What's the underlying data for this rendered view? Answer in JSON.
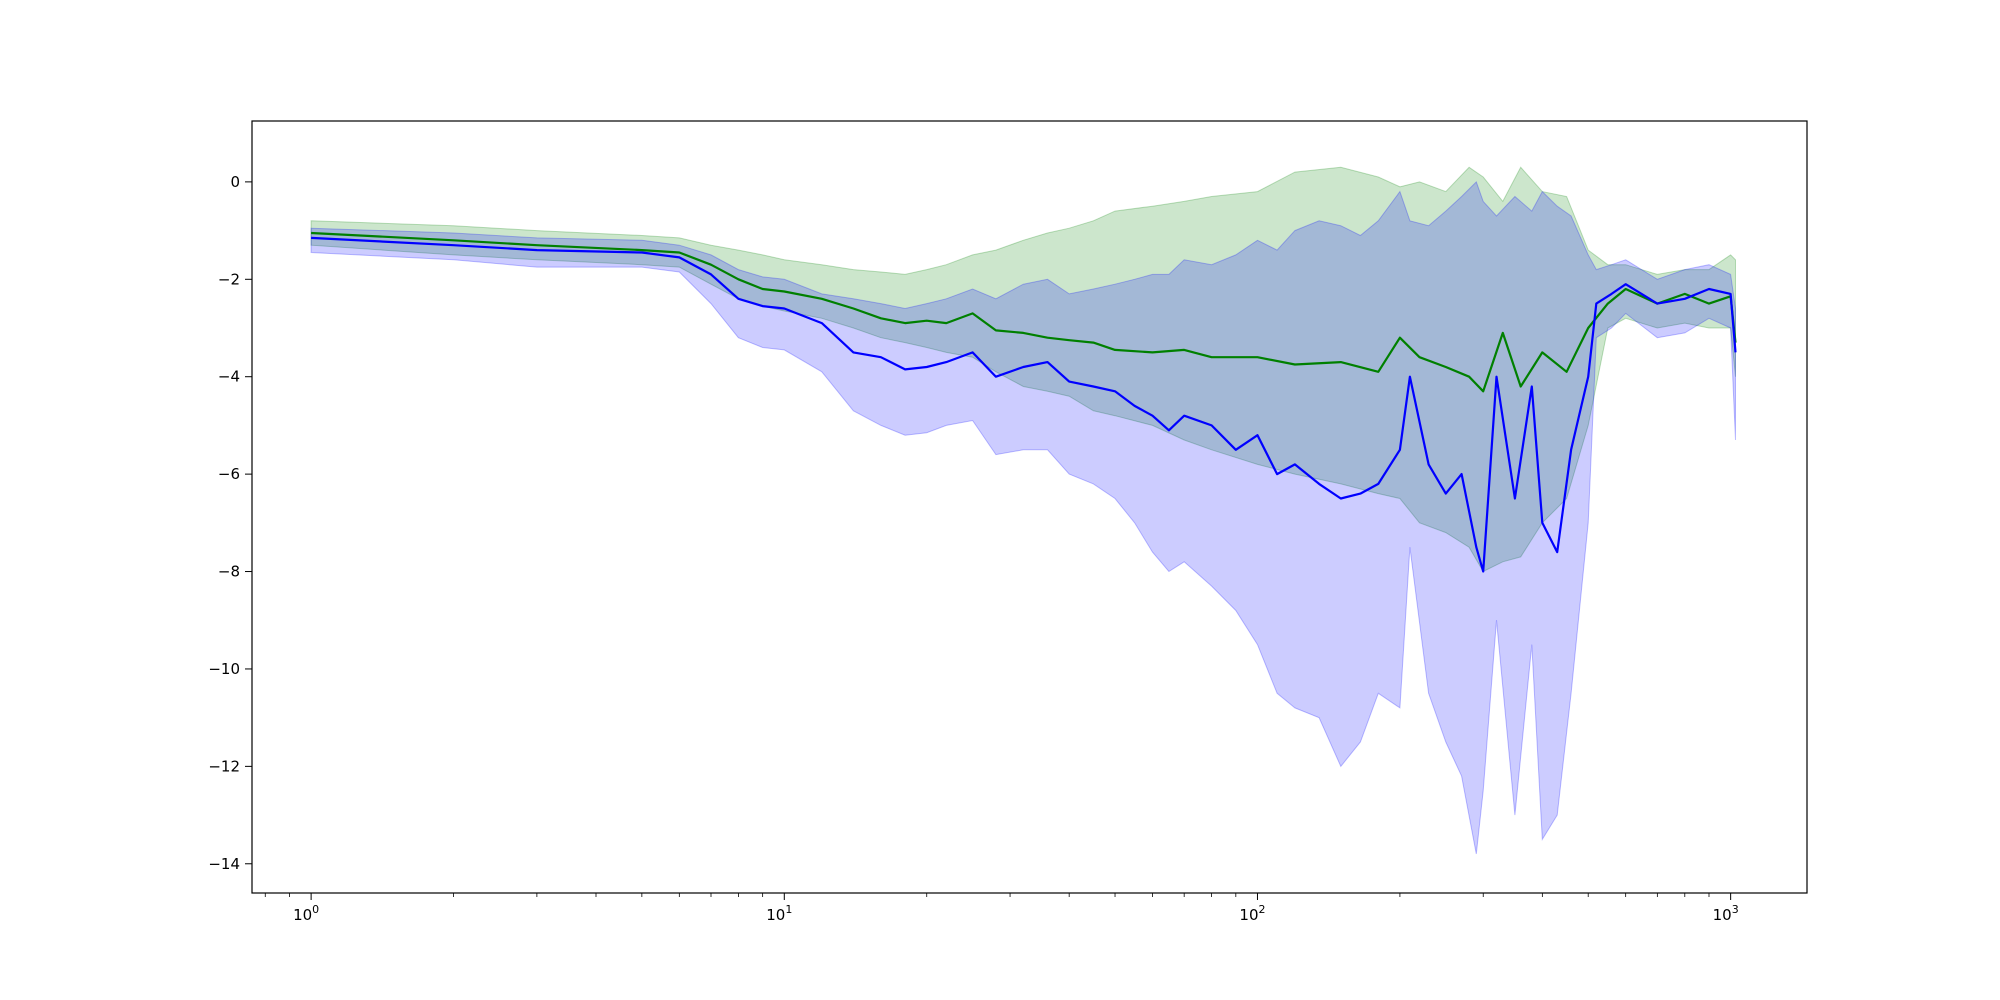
{
  "chart_data": {
    "type": "line",
    "title": "",
    "xlabel": "",
    "ylabel": "",
    "xscale": "log",
    "xlim": [
      0.75,
      1450
    ],
    "ylim": [
      -14.6,
      1.25
    ],
    "grid": false,
    "legend": "none",
    "x_ticks": [
      {
        "value": 1,
        "base": "10",
        "exp": "0"
      },
      {
        "value": 10,
        "base": "10",
        "exp": "1"
      },
      {
        "value": 100,
        "base": "10",
        "exp": "2"
      },
      {
        "value": 1000,
        "base": "10",
        "exp": "3"
      }
    ],
    "y_ticks": [
      {
        "value": 0,
        "label": "0"
      },
      {
        "value": -2,
        "label": "−2"
      },
      {
        "value": -4,
        "label": "−4"
      },
      {
        "value": -6,
        "label": "−6"
      },
      {
        "value": -8,
        "label": "−8"
      },
      {
        "value": -10,
        "label": "−10"
      },
      {
        "value": -12,
        "label": "−12"
      },
      {
        "value": -14,
        "label": "−14"
      }
    ],
    "series": [
      {
        "color": "#008000",
        "band_color": "#008000",
        "band_opacity": 0.2,
        "x": [
          1,
          2,
          3,
          5,
          6,
          7,
          8,
          9,
          10,
          12,
          14,
          16,
          18,
          20,
          22,
          25,
          28,
          32,
          36,
          40,
          45,
          50,
          60,
          70,
          80,
          100,
          120,
          150,
          180,
          200,
          220,
          250,
          280,
          300,
          330,
          360,
          400,
          450,
          500,
          550,
          600,
          700,
          800,
          900,
          1000,
          1024
        ],
        "mean": [
          -1.05,
          -1.2,
          -1.3,
          -1.4,
          -1.45,
          -1.7,
          -2.0,
          -2.2,
          -2.25,
          -2.4,
          -2.6,
          -2.8,
          -2.9,
          -2.85,
          -2.9,
          -2.7,
          -3.05,
          -3.1,
          -3.2,
          -3.25,
          -3.3,
          -3.45,
          -3.5,
          -3.45,
          -3.6,
          -3.6,
          -3.75,
          -3.7,
          -3.9,
          -3.2,
          -3.6,
          -3.8,
          -4.0,
          -4.3,
          -3.1,
          -4.2,
          -3.5,
          -3.9,
          -3.0,
          -2.5,
          -2.2,
          -2.5,
          -2.3,
          -2.5,
          -2.35,
          -3.3
        ],
        "upper": [
          -0.8,
          -0.9,
          -1.0,
          -1.1,
          -1.15,
          -1.3,
          -1.4,
          -1.5,
          -1.6,
          -1.7,
          -1.8,
          -1.85,
          -1.9,
          -1.8,
          -1.7,
          -1.5,
          -1.4,
          -1.2,
          -1.05,
          -0.95,
          -0.8,
          -0.6,
          -0.5,
          -0.4,
          -0.3,
          -0.2,
          0.2,
          0.3,
          0.1,
          -0.1,
          0.0,
          -0.2,
          0.3,
          0.1,
          -0.4,
          0.3,
          -0.2,
          -0.3,
          -1.4,
          -1.7,
          -1.7,
          -1.9,
          -1.8,
          -1.8,
          -1.5,
          -1.6
        ],
        "lower": [
          -1.3,
          -1.5,
          -1.6,
          -1.7,
          -1.75,
          -2.1,
          -2.4,
          -2.55,
          -2.65,
          -2.8,
          -3.0,
          -3.2,
          -3.3,
          -3.4,
          -3.5,
          -3.6,
          -3.9,
          -4.2,
          -4.3,
          -4.4,
          -4.7,
          -4.8,
          -5.0,
          -5.3,
          -5.5,
          -5.8,
          -6.0,
          -6.2,
          -6.4,
          -6.5,
          -7.0,
          -7.2,
          -7.5,
          -8.0,
          -7.8,
          -7.7,
          -7.0,
          -6.5,
          -5.0,
          -3.0,
          -2.8,
          -3.0,
          -2.9,
          -3.0,
          -3.0,
          -4.0
        ]
      },
      {
        "color": "#0000ff",
        "band_color": "#0000ff",
        "band_opacity": 0.2,
        "x": [
          1,
          2,
          3,
          5,
          6,
          7,
          8,
          9,
          10,
          12,
          14,
          16,
          18,
          20,
          22,
          25,
          28,
          32,
          36,
          40,
          45,
          50,
          55,
          60,
          65,
          70,
          80,
          90,
          100,
          110,
          120,
          135,
          150,
          165,
          180,
          200,
          210,
          230,
          250,
          270,
          290,
          300,
          320,
          350,
          380,
          400,
          430,
          460,
          500,
          520,
          560,
          600,
          700,
          800,
          900,
          1000,
          1024
        ],
        "mean": [
          -1.15,
          -1.3,
          -1.4,
          -1.45,
          -1.55,
          -1.9,
          -2.4,
          -2.55,
          -2.6,
          -2.9,
          -3.5,
          -3.6,
          -3.85,
          -3.8,
          -3.7,
          -3.5,
          -4.0,
          -3.8,
          -3.7,
          -4.1,
          -4.2,
          -4.3,
          -4.6,
          -4.8,
          -5.1,
          -4.8,
          -5.0,
          -5.5,
          -5.2,
          -6.0,
          -5.8,
          -6.2,
          -6.5,
          -6.4,
          -6.2,
          -5.5,
          -4.0,
          -5.8,
          -6.4,
          -6.0,
          -7.5,
          -8.0,
          -4.0,
          -6.5,
          -4.2,
          -7.0,
          -7.6,
          -5.5,
          -4.0,
          -2.5,
          -2.3,
          -2.1,
          -2.5,
          -2.4,
          -2.2,
          -2.3,
          -3.5
        ],
        "upper": [
          -0.95,
          -1.05,
          -1.15,
          -1.2,
          -1.3,
          -1.5,
          -1.8,
          -1.95,
          -2.0,
          -2.3,
          -2.4,
          -2.5,
          -2.6,
          -2.5,
          -2.4,
          -2.2,
          -2.4,
          -2.1,
          -2.0,
          -2.3,
          -2.2,
          -2.1,
          -2.0,
          -1.9,
          -1.9,
          -1.6,
          -1.7,
          -1.5,
          -1.2,
          -1.4,
          -1.0,
          -0.8,
          -0.9,
          -1.1,
          -0.8,
          -0.2,
          -0.8,
          -0.9,
          -0.6,
          -0.3,
          0.0,
          -0.4,
          -0.7,
          -0.3,
          -0.6,
          -0.2,
          -0.5,
          -0.7,
          -1.5,
          -1.8,
          -1.7,
          -1.6,
          -2.0,
          -1.8,
          -1.7,
          -1.9,
          -2.6
        ],
        "lower": [
          -1.45,
          -1.6,
          -1.75,
          -1.75,
          -1.85,
          -2.5,
          -3.2,
          -3.4,
          -3.45,
          -3.9,
          -4.7,
          -5.0,
          -5.2,
          -5.15,
          -5.0,
          -4.9,
          -5.6,
          -5.5,
          -5.5,
          -6.0,
          -6.2,
          -6.5,
          -7.0,
          -7.6,
          -8.0,
          -7.8,
          -8.3,
          -8.8,
          -9.5,
          -10.5,
          -10.8,
          -11.0,
          -12.0,
          -11.5,
          -10.5,
          -10.8,
          -7.5,
          -10.5,
          -11.5,
          -12.2,
          -13.8,
          -12.5,
          -9.0,
          -13.0,
          -9.5,
          -13.5,
          -13.0,
          -10.5,
          -7.0,
          -3.2,
          -3.0,
          -2.7,
          -3.2,
          -3.1,
          -2.8,
          -3.0,
          -5.3
        ]
      }
    ]
  }
}
